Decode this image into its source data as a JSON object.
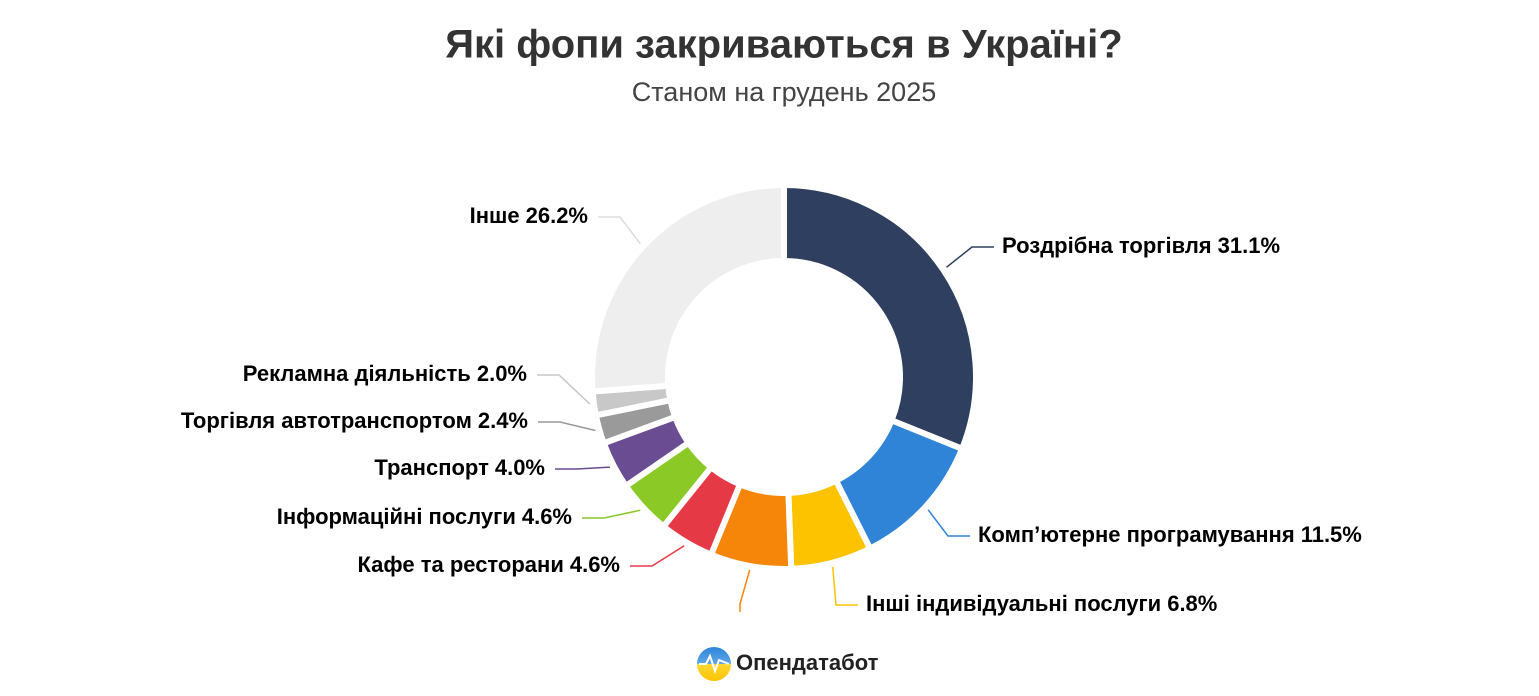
{
  "chart_data": {
    "type": "pie",
    "title": "Які фопи закриваються в Україні?",
    "subtitle": "Станом на грудень 2025",
    "categories": [
      "Роздрібна торгівля",
      "Комп’ютерне програмування",
      "Інші індивідуальні послуги",
      null,
      "Кафе та ресторани",
      "Інформаційні послуги",
      "Транспорт",
      "Торгівля автотранспортом",
      "Рекламна діяльність",
      "Інше"
    ],
    "values": [
      31.1,
      11.5,
      6.8,
      6.8,
      4.6,
      4.6,
      4.0,
      2.4,
      2.0,
      26.2
    ],
    "value_labels": [
      "31.1%",
      "11.5%",
      "6.8%",
      null,
      "4.6%",
      "4.6%",
      "4.0%",
      "2.4%",
      "2.0%",
      "26.2%"
    ],
    "colors": [
      "#2e3f5f",
      "#2f84d8",
      "#fdc300",
      "#f5860a",
      "#e63946",
      "#8ac926",
      "#6a4c93",
      "#9a9a9a",
      "#c8c8c8",
      "#eeeeee"
    ],
    "donut": true,
    "footer": "Опендатабот"
  }
}
